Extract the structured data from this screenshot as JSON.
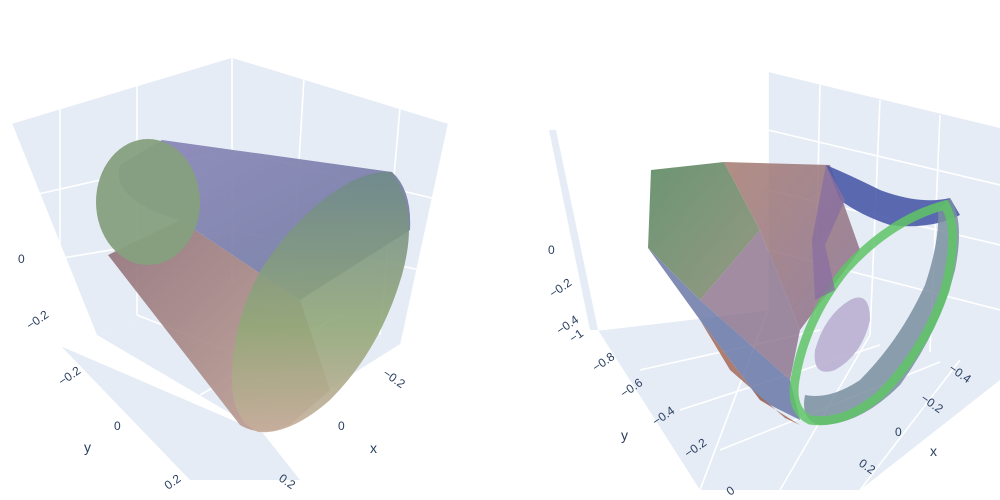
{
  "chart_data": [
    {
      "type": "mesh3d",
      "title": "",
      "scene": {
        "x_ticks": [
          "−0.2",
          "0",
          "0.2"
        ],
        "y_ticks": [
          "−0.2",
          "0",
          "0.2"
        ],
        "z_ticks": [
          "−0.2",
          "0"
        ],
        "xlabel": "x",
        "ylabel": "y",
        "zlabel": "",
        "grid": true,
        "background": "#e5ecf6"
      },
      "colors": {
        "surface_top": "#7f80b0",
        "surface_side": "#9a7a7a",
        "cap_small": "#86a07e",
        "cap_large": "#7f9a86"
      }
    },
    {
      "type": "mesh3d",
      "title": "",
      "scene": {
        "x_ticks": [
          "−0.4",
          "−0.2",
          "0",
          "0.2"
        ],
        "y_ticks": [
          "−0.8",
          "−0.6",
          "−0.4",
          "−0.2",
          "0"
        ],
        "z_ticks": [
          "−1",
          "−0.4",
          "−0.2",
          "0"
        ],
        "xlabel": "x",
        "ylabel": "y",
        "zlabel": "",
        "grid": true,
        "background": "#e5ecf6"
      },
      "colors": {
        "face_green": "#6f8f6a",
        "face_red": "#a07a6e",
        "face_blue": "#6a78a6",
        "ring_green": "#5fc466"
      }
    }
  ]
}
